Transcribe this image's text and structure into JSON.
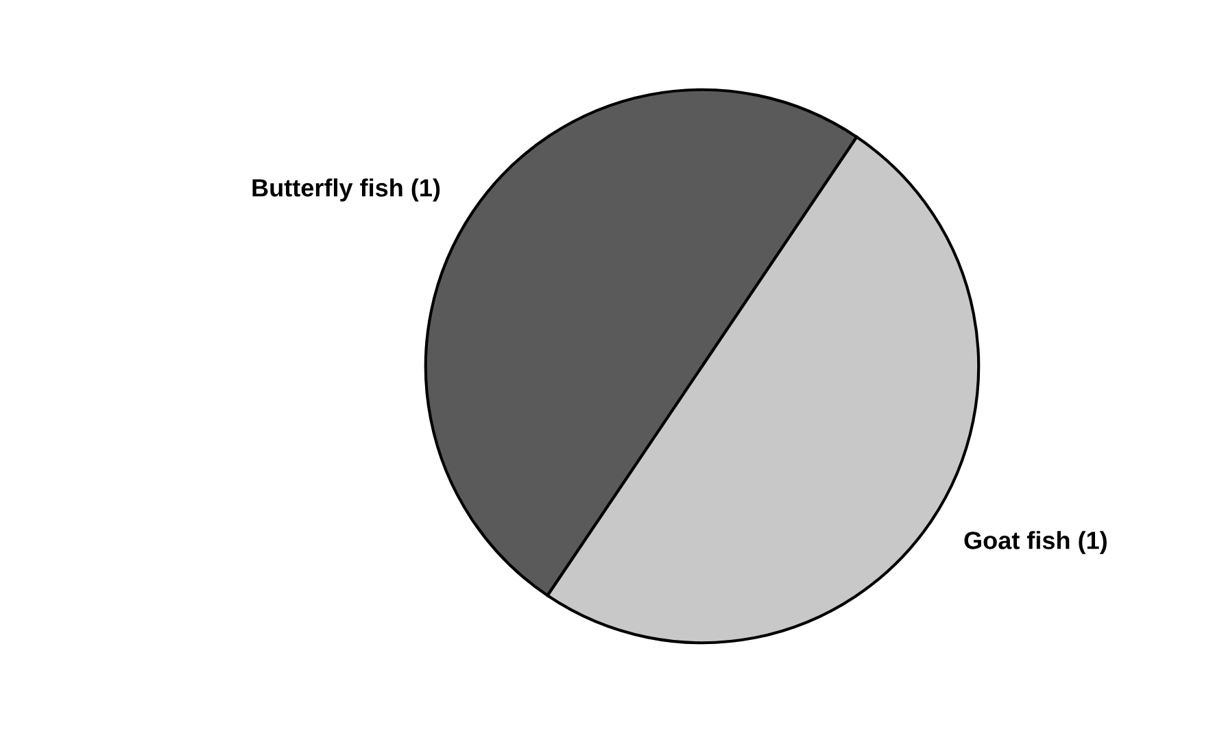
{
  "chart_data": {
    "type": "pie",
    "categories": [
      "Butterfly fish",
      "Goat fish"
    ],
    "values": [
      1,
      1
    ],
    "colors": [
      "#5a5a5a",
      "#c8c8c8"
    ],
    "value_labels": [
      "(1)",
      "(1)"
    ],
    "legend": false
  }
}
